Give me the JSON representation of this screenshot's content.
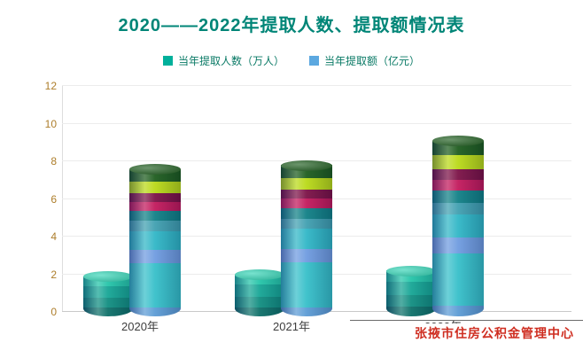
{
  "title": "2020——2022年提取人数、提取额情况表",
  "legend": [
    {
      "label": "当年提取人数（万人）",
      "color": "#00b09b"
    },
    {
      "label": "当年提取额（亿元）",
      "color": "#5ca8e0"
    }
  ],
  "watermark": {
    "text": "张掖市住房公积金管理中心",
    "color": "#cf2e21"
  },
  "chart_data": {
    "type": "bar",
    "subtype": "3d-cylinder",
    "title": "2020——2022年提取人数、提取额情况表",
    "categories": [
      "2020年",
      "2021年",
      "2022年"
    ],
    "series": [
      {
        "name": "当年提取人数（万人）",
        "values": [
          2.1,
          2.2,
          2.4
        ]
      },
      {
        "name": "当年提取额（亿元）",
        "values": [
          7.8,
          8.0,
          9.3
        ]
      }
    ],
    "xlabel": "",
    "ylabel": "",
    "ylim": [
      0,
      12
    ],
    "yticks": [
      0,
      2,
      4,
      6,
      8,
      10,
      12
    ],
    "grid": true,
    "legend_position": "top",
    "colors": {
      "people_bands": [
        {
          "f": 0.22,
          "c": "#0c6f68"
        },
        {
          "f": 0.26,
          "c": "#0f8d80"
        },
        {
          "f": 0.28,
          "c": "#14a594"
        },
        {
          "f": 0.24,
          "c": "#23c4a8"
        }
      ],
      "people_cap": "#2fd3b4",
      "amount_bands": [
        {
          "f": 0.06,
          "c": "#5b9bd5"
        },
        {
          "f": 0.3,
          "c": "#35bfc9"
        },
        {
          "f": 0.09,
          "c": "#6e9be0"
        },
        {
          "f": 0.13,
          "c": "#2fb6c6"
        },
        {
          "f": 0.07,
          "c": "#3f9fb0"
        },
        {
          "f": 0.07,
          "c": "#0f7f85"
        },
        {
          "f": 0.06,
          "c": "#c2185b"
        },
        {
          "f": 0.06,
          "c": "#7b1045"
        },
        {
          "f": 0.08,
          "c": "#b9d916"
        },
        {
          "f": 0.08,
          "c": "#1d5c1d"
        }
      ],
      "amount_cap": "#1d5c1d",
      "ytick_color": "#ad7d2a"
    }
  }
}
